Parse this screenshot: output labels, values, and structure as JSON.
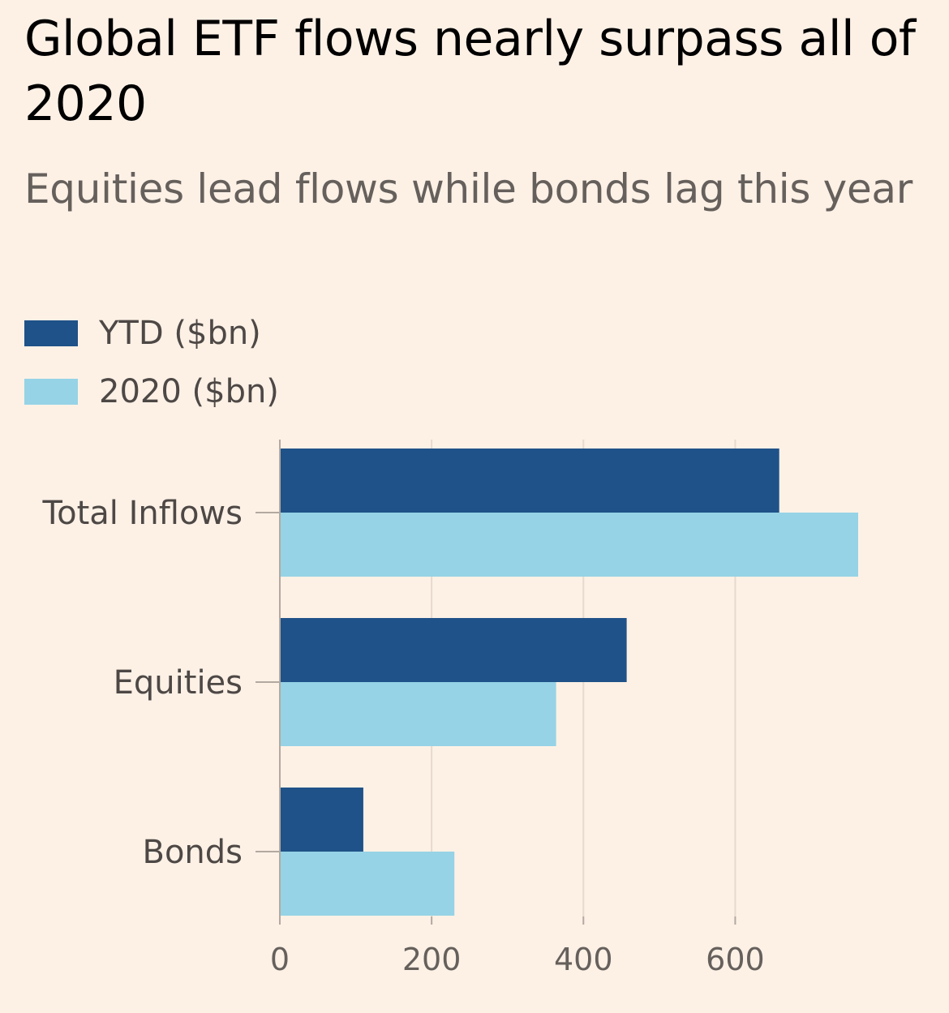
{
  "header": {
    "title": "Global ETF flows nearly surpass all of 2020",
    "subtitle": "Equities lead flows while bonds lag this year"
  },
  "colors": {
    "background": "#fdf1e6",
    "ytd": "#1f5288",
    "year2020": "#96d3e6",
    "grid": "#e6d9ce",
    "axis": "#b3a9a0"
  },
  "chart_data": {
    "type": "bar",
    "orientation": "horizontal",
    "categories": [
      "Total Inflows",
      "Equities",
      "Bonds"
    ],
    "series": [
      {
        "name": "YTD ($bn)",
        "values": [
          658,
          457,
          110
        ]
      },
      {
        "name": "2020 ($bn)",
        "values": [
          762,
          364,
          230
        ]
      }
    ],
    "xlim": [
      0,
      762
    ],
    "xticks": [
      0,
      200,
      400,
      600
    ],
    "grid": true,
    "legend_position": "top-left"
  }
}
